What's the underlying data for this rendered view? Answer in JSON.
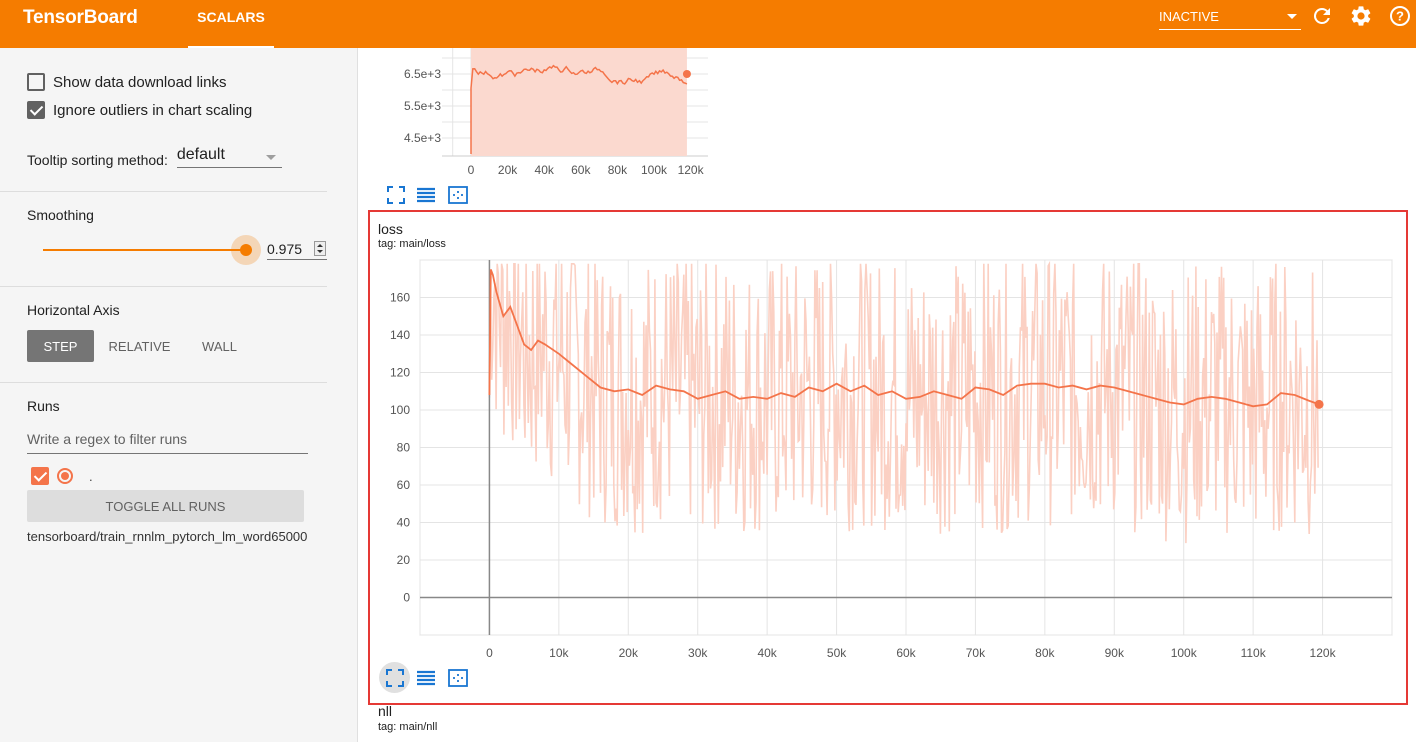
{
  "header": {
    "title": "TensorBoard",
    "tab": "SCALARS",
    "status": "INACTIVE",
    "icons": [
      "refresh-icon",
      "settings-icon",
      "help-icon"
    ]
  },
  "sidebar": {
    "show_download_links": {
      "label": "Show data download links",
      "checked": false
    },
    "ignore_outliers": {
      "label": "Ignore outliers in chart scaling",
      "checked": true
    },
    "tooltip_sorting": {
      "label": "Tooltip sorting method:",
      "value": "default"
    },
    "smoothing": {
      "title": "Smoothing",
      "value": "0.975",
      "fraction": 0.975
    },
    "horizontal_axis": {
      "title": "Horizontal Axis",
      "options": [
        "STEP",
        "RELATIVE",
        "WALL"
      ],
      "selected": "STEP"
    },
    "runs": {
      "title": "Runs",
      "filter_placeholder": "Write a regex to filter runs",
      "run_name": ".",
      "toggle_all_label": "TOGGLE ALL RUNS",
      "path": "tensorboard/train_rnnlm_pytorch_lm_word65000"
    }
  },
  "colors": {
    "accent": "#f57c00",
    "series": "#f4744a",
    "series_raw": "#fbd0c3",
    "highlight_border": "#e53935"
  },
  "main": {
    "top_chart_partial": {
      "y_ticks": [
        "6.5e+3",
        "5.5e+3",
        "4.5e+3"
      ],
      "x_ticks": [
        "0",
        "20k",
        "40k",
        "60k",
        "80k",
        "100k",
        "120k"
      ]
    },
    "loss_card": {
      "title": "loss",
      "tag": "tag: main/loss"
    },
    "nll_card": {
      "title": "nll",
      "tag": "tag: main/nll"
    },
    "chart_icons": [
      "fullscreen-icon",
      "list-icon",
      "fit-domain-icon"
    ]
  },
  "chart_data": [
    {
      "type": "line",
      "title": "loss",
      "subtitle": "tag: main/loss",
      "xlim": [
        -10000,
        130000
      ],
      "ylim": [
        -20,
        180
      ],
      "x_ticks": [
        0,
        10000,
        20000,
        30000,
        40000,
        50000,
        60000,
        70000,
        80000,
        90000,
        100000,
        110000,
        120000
      ],
      "x_tick_labels": [
        "0",
        "10k",
        "20k",
        "30k",
        "40k",
        "50k",
        "60k",
        "70k",
        "80k",
        "90k",
        "100k",
        "110k",
        "120k"
      ],
      "y_ticks": [
        0,
        20,
        40,
        60,
        80,
        100,
        120,
        140,
        160
      ],
      "y_tick_labels": [
        "0",
        "20",
        "40",
        "60",
        "80",
        "100",
        "120",
        "140",
        "160"
      ],
      "grid": true,
      "series": [
        {
          "x": [
            0,
            200,
            500,
            1000,
            2000,
            3000,
            4000,
            5000,
            6000,
            7000,
            8000,
            10000,
            12000,
            14000,
            16000,
            18000,
            20000,
            22000,
            24000,
            26000,
            28000,
            30000,
            32000,
            34000,
            36000,
            38000,
            40000,
            42000,
            44000,
            46000,
            48000,
            50000,
            52000,
            54000,
            56000,
            58000,
            60000,
            62000,
            64000,
            66000,
            68000,
            70000,
            72000,
            74000,
            76000,
            78000,
            80000,
            82000,
            84000,
            86000,
            88000,
            90000,
            92000,
            94000,
            96000,
            98000,
            100000,
            102000,
            104000,
            106000,
            108000,
            110000,
            112000,
            114000,
            116000,
            118000,
            119500
          ],
          "y": [
            108,
            175,
            172,
            163,
            150,
            155,
            145,
            135,
            132,
            137,
            135,
            130,
            124,
            118,
            112,
            110,
            111,
            108,
            113,
            111,
            110,
            106,
            108,
            110,
            106,
            107,
            106,
            109,
            107,
            112,
            110,
            114,
            110,
            113,
            108,
            110,
            106,
            107,
            110,
            108,
            106,
            112,
            111,
            108,
            113,
            114,
            114,
            112,
            113,
            111,
            113,
            112,
            110,
            108,
            106,
            104,
            103,
            106,
            107,
            106,
            104,
            102,
            103,
            109,
            108,
            105,
            103
          ]
        }
      ]
    }
  ]
}
